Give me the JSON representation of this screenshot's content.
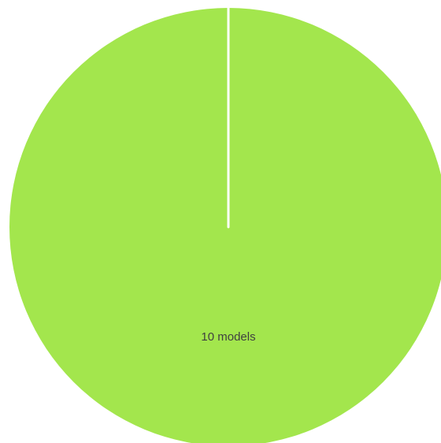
{
  "chart_data": {
    "type": "pie",
    "slices": [
      {
        "label": "10 models",
        "value": 10,
        "color": "#a3e64d"
      }
    ],
    "start_angle_deg": 0,
    "separator_color": "#ffffff"
  }
}
